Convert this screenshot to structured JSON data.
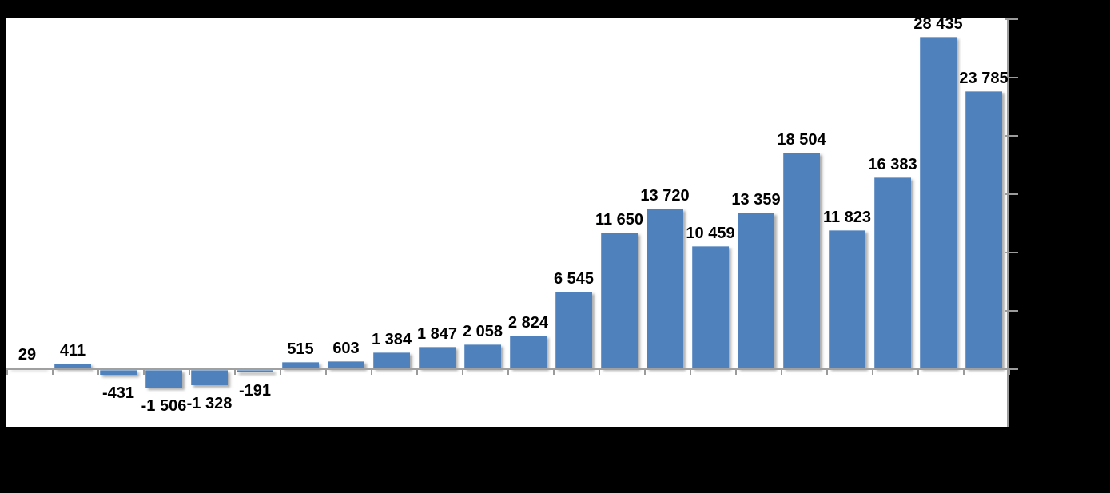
{
  "figure": {
    "background_color": "#000000",
    "plot_background_color": "#FFFFFF",
    "bar_color": "#4F81BD",
    "axis_color": "#9B9B9B",
    "data_label_color": "#000000"
  },
  "chart_data": {
    "type": "bar",
    "values": [
      29,
      411,
      -431,
      -1506,
      -1328,
      -191,
      515,
      603,
      1384,
      1847,
      2058,
      2824,
      6545,
      11650,
      13720,
      10459,
      13359,
      18504,
      11823,
      16383,
      28435,
      23785
    ],
    "data_labels": [
      "29",
      "411",
      "-431",
      "-1 506",
      "-1 328",
      "-191",
      "515",
      "603",
      "1 384",
      "1 847",
      "2 058",
      "2 824",
      "6 545",
      "11 650",
      "13 720",
      "10 459",
      "13 359",
      "18 504",
      "11 823",
      "16 383",
      "28 435",
      "23 785"
    ],
    "title": "",
    "xlabel": "",
    "ylabel": "",
    "ylim": [
      -5000,
      30000
    ],
    "y_tick_interval": 5000,
    "y_axis_side": "right",
    "y_tick_count": 7,
    "x_tick_count": 23,
    "grid": false,
    "legend": false,
    "axis_tick_labels_visible": false,
    "data_labels_visible": true,
    "thousands_separator": " "
  }
}
